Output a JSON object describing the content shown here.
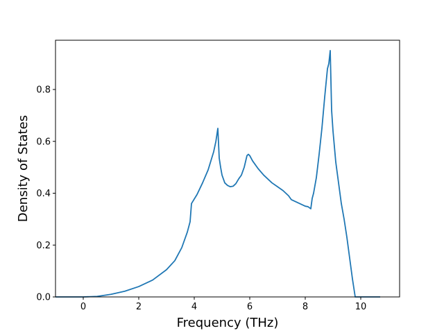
{
  "chart_data": {
    "type": "line",
    "title": "",
    "xlabel": "Frequency (THz)",
    "ylabel": "Density of States",
    "xlim": [
      -1.0,
      11.4
    ],
    "ylim": [
      0.0,
      0.99
    ],
    "xticks": [
      0,
      2,
      4,
      6,
      8,
      10
    ],
    "yticks": [
      0.0,
      0.2,
      0.4,
      0.6,
      0.8
    ],
    "xtick_labels": [
      "0",
      "2",
      "4",
      "6",
      "8",
      "10"
    ],
    "ytick_labels": [
      "0.0",
      "0.2",
      "0.4",
      "0.6",
      "0.8"
    ],
    "grid": false,
    "line_color": "#1f77b4",
    "series": [
      {
        "x": [
          -1.0,
          -0.5,
          0.0,
          0.5,
          1.0,
          1.5,
          2.0,
          2.5,
          3.0,
          3.3,
          3.55,
          3.75,
          3.85,
          3.9,
          4.1,
          4.3,
          4.5,
          4.7,
          4.78,
          4.85,
          4.9,
          4.95,
          5.0,
          5.1,
          5.2,
          5.3,
          5.4,
          5.5,
          5.6,
          5.7,
          5.8,
          5.9,
          5.95,
          6.0,
          6.05,
          6.1,
          6.3,
          6.5,
          6.8,
          7.0,
          7.2,
          7.4,
          7.5,
          7.7,
          7.9,
          8.0,
          8.1,
          8.2,
          8.25,
          8.3,
          8.4,
          8.5,
          8.6,
          8.7,
          8.8,
          8.85,
          8.9,
          8.95,
          9.0,
          9.1,
          9.2,
          9.3,
          9.4,
          9.5,
          9.6,
          9.7,
          9.8,
          10.0,
          10.3,
          10.7
        ],
        "y": [
          0.0,
          0.0,
          0.0,
          0.002,
          0.01,
          0.022,
          0.04,
          0.065,
          0.105,
          0.14,
          0.19,
          0.25,
          0.29,
          0.36,
          0.395,
          0.44,
          0.49,
          0.56,
          0.6,
          0.65,
          0.535,
          0.5,
          0.47,
          0.44,
          0.43,
          0.425,
          0.427,
          0.437,
          0.455,
          0.47,
          0.5,
          0.545,
          0.55,
          0.545,
          0.535,
          0.525,
          0.495,
          0.47,
          0.44,
          0.425,
          0.41,
          0.39,
          0.375,
          0.365,
          0.355,
          0.35,
          0.348,
          0.34,
          0.38,
          0.4,
          0.46,
          0.55,
          0.65,
          0.77,
          0.88,
          0.9,
          0.95,
          0.72,
          0.64,
          0.52,
          0.44,
          0.36,
          0.3,
          0.23,
          0.15,
          0.07,
          0.0,
          0.0,
          0.0,
          0.0
        ]
      }
    ]
  }
}
